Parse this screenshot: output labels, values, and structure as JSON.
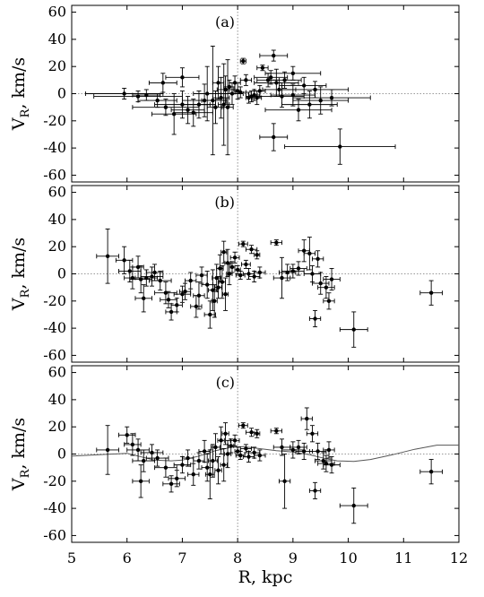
{
  "chart_data": [
    {
      "type": "scatter",
      "panel_label": "(a)",
      "ylabel_main": "V",
      "ylabel_sub": "R",
      "ylabel_rest": ", km/s",
      "xlim": [
        5,
        12
      ],
      "ylim": [
        -65,
        65
      ],
      "yticks": [
        "60",
        "40",
        "20",
        "0",
        "-20",
        "-40",
        "-60"
      ],
      "grid": false,
      "reference_lines": {
        "x": 8,
        "y": 0
      },
      "points": [
        {
          "x": 5.95,
          "y": 0,
          "xerr": 0.7,
          "yerr": 4
        },
        {
          "x": 6.2,
          "y": -2,
          "xerr": 0.8,
          "yerr": 4
        },
        {
          "x": 6.35,
          "y": -1,
          "xerr": 0.25,
          "yerr": 4
        },
        {
          "x": 6.55,
          "y": -5,
          "xerr": 0.35,
          "yerr": 5
        },
        {
          "x": 6.65,
          "y": 8,
          "xerr": 0.25,
          "yerr": 7
        },
        {
          "x": 6.7,
          "y": -10,
          "xerr": 0.6,
          "yerr": 6
        },
        {
          "x": 6.85,
          "y": -15,
          "xerr": 0.4,
          "yerr": 15
        },
        {
          "x": 7.0,
          "y": 12,
          "xerr": 0.3,
          "yerr": 7
        },
        {
          "x": 7.0,
          "y": -8,
          "xerr": 0.5,
          "yerr": 10
        },
        {
          "x": 7.1,
          "y": -12,
          "xerr": 0.3,
          "yerr": 10
        },
        {
          "x": 7.2,
          "y": -14,
          "xerr": 0.35,
          "yerr": 10
        },
        {
          "x": 7.3,
          "y": -8,
          "xerr": 0.3,
          "yerr": 10
        },
        {
          "x": 7.4,
          "y": -5,
          "xerr": 0.4,
          "yerr": 12
        },
        {
          "x": 7.45,
          "y": 0,
          "xerr": 0.25,
          "yerr": 20
        },
        {
          "x": 7.55,
          "y": -5,
          "xerr": 0.2,
          "yerr": 40
        },
        {
          "x": 7.6,
          "y": -10,
          "xerr": 0.15,
          "yerr": 12
        },
        {
          "x": 7.65,
          "y": 8,
          "xerr": 0.1,
          "yerr": 12
        },
        {
          "x": 7.7,
          "y": -3,
          "xerr": 0.15,
          "yerr": 15
        },
        {
          "x": 7.75,
          "y": -8,
          "xerr": 0.1,
          "yerr": 30
        },
        {
          "x": 7.78,
          "y": 3,
          "xerr": 0.15,
          "yerr": 10
        },
        {
          "x": 7.82,
          "y": -10,
          "xerr": 0.1,
          "yerr": 35
        },
        {
          "x": 7.85,
          "y": 5,
          "xerr": 0.1,
          "yerr": 5
        },
        {
          "x": 7.9,
          "y": 0,
          "xerr": 0.2,
          "yerr": 8
        },
        {
          "x": 7.95,
          "y": 8,
          "xerr": 0.1,
          "yerr": 5
        },
        {
          "x": 8.0,
          "y": 2,
          "xerr": 0.05,
          "yerr": 6
        },
        {
          "x": 8.05,
          "y": 1,
          "xerr": 0.1,
          "yerr": 4
        },
        {
          "x": 8.1,
          "y": 24,
          "xerr": 0.05,
          "yerr": 2
        },
        {
          "x": 8.15,
          "y": 10,
          "xerr": 0.1,
          "yerr": 4
        },
        {
          "x": 8.2,
          "y": -3,
          "xerr": 0.05,
          "yerr": 4
        },
        {
          "x": 8.25,
          "y": -2,
          "xerr": 0.1,
          "yerr": 4
        },
        {
          "x": 8.3,
          "y": -1,
          "xerr": 0.1,
          "yerr": 4
        },
        {
          "x": 8.35,
          "y": -3,
          "xerr": 0.08,
          "yerr": 5
        },
        {
          "x": 8.4,
          "y": 2,
          "xerr": 0.1,
          "yerr": 4
        },
        {
          "x": 8.45,
          "y": 19,
          "xerr": 0.1,
          "yerr": 2
        },
        {
          "x": 8.55,
          "y": 10,
          "xerr": 0.2,
          "yerr": 5
        },
        {
          "x": 8.6,
          "y": 12,
          "xerr": 0.3,
          "yerr": 5
        },
        {
          "x": 8.65,
          "y": 28,
          "xerr": 0.25,
          "yerr": 4
        },
        {
          "x": 8.65,
          "y": -32,
          "xerr": 0.25,
          "yerr": 10
        },
        {
          "x": 8.7,
          "y": 8,
          "xerr": 0.4,
          "yerr": 10
        },
        {
          "x": 8.75,
          "y": 3,
          "xerr": 0.3,
          "yerr": 5
        },
        {
          "x": 8.8,
          "y": -2,
          "xerr": 0.4,
          "yerr": 8
        },
        {
          "x": 8.85,
          "y": 10,
          "xerr": 0.3,
          "yerr": 6
        },
        {
          "x": 9.0,
          "y": -1,
          "xerr": 0.4,
          "yerr": 8
        },
        {
          "x": 9.0,
          "y": 15,
          "xerr": 0.5,
          "yerr": 5
        },
        {
          "x": 9.1,
          "y": -12,
          "xerr": 0.6,
          "yerr": 8
        },
        {
          "x": 9.2,
          "y": 6,
          "xerr": 0.4,
          "yerr": 6
        },
        {
          "x": 9.3,
          "y": -8,
          "xerr": 0.5,
          "yerr": 10
        },
        {
          "x": 9.4,
          "y": 3,
          "xerr": 0.6,
          "yerr": 6
        },
        {
          "x": 9.5,
          "y": -5,
          "xerr": 0.5,
          "yerr": 10
        },
        {
          "x": 9.7,
          "y": -3,
          "xerr": 0.7,
          "yerr": 6
        },
        {
          "x": 9.85,
          "y": -39,
          "xerr": 1.0,
          "yerr": 13
        }
      ]
    },
    {
      "type": "scatter",
      "panel_label": "(b)",
      "ylabel_main": "V",
      "ylabel_sub": "R",
      "ylabel_rest": ", km/s",
      "xlim": [
        5,
        12
      ],
      "ylim": [
        -65,
        65
      ],
      "yticks": [
        "60",
        "40",
        "20",
        "0",
        "-20",
        "-40",
        "-60"
      ],
      "grid": false,
      "reference_lines": {
        "x": 8,
        "y": 0
      },
      "points": [
        {
          "x": 5.65,
          "y": 13,
          "xerr": 0.2,
          "yerr": 20
        },
        {
          "x": 5.95,
          "y": 10,
          "xerr": 0.15,
          "yerr": 10
        },
        {
          "x": 6.05,
          "y": 2,
          "xerr": 0.2,
          "yerr": 8
        },
        {
          "x": 6.1,
          "y": -3,
          "xerr": 0.15,
          "yerr": 8
        },
        {
          "x": 6.2,
          "y": 5,
          "xerr": 0.1,
          "yerr": 8
        },
        {
          "x": 6.25,
          "y": -4,
          "xerr": 0.2,
          "yerr": 10
        },
        {
          "x": 6.3,
          "y": -18,
          "xerr": 0.15,
          "yerr": 10
        },
        {
          "x": 6.35,
          "y": -3,
          "xerr": 0.2,
          "yerr": 6
        },
        {
          "x": 6.45,
          "y": -2,
          "xerr": 0.2,
          "yerr": 7
        },
        {
          "x": 6.5,
          "y": 1,
          "xerr": 0.15,
          "yerr": 6
        },
        {
          "x": 6.6,
          "y": -5,
          "xerr": 0.2,
          "yerr": 7
        },
        {
          "x": 6.7,
          "y": -14,
          "xerr": 0.2,
          "yerr": 8
        },
        {
          "x": 6.75,
          "y": -19,
          "xerr": 0.15,
          "yerr": 6
        },
        {
          "x": 6.8,
          "y": -28,
          "xerr": 0.1,
          "yerr": 6
        },
        {
          "x": 6.9,
          "y": -23,
          "xerr": 0.1,
          "yerr": 5
        },
        {
          "x": 7.0,
          "y": -15,
          "xerr": 0.15,
          "yerr": 6
        },
        {
          "x": 7.05,
          "y": -13,
          "xerr": 0.1,
          "yerr": 6
        },
        {
          "x": 7.15,
          "y": -5,
          "xerr": 0.1,
          "yerr": 6
        },
        {
          "x": 7.25,
          "y": -24,
          "xerr": 0.1,
          "yerr": 8
        },
        {
          "x": 7.3,
          "y": -16,
          "xerr": 0.1,
          "yerr": 10
        },
        {
          "x": 7.35,
          "y": -1,
          "xerr": 0.1,
          "yerr": 6
        },
        {
          "x": 7.45,
          "y": -8,
          "xerr": 0.1,
          "yerr": 10
        },
        {
          "x": 7.5,
          "y": -30,
          "xerr": 0.1,
          "yerr": 10
        },
        {
          "x": 7.55,
          "y": -12,
          "xerr": 0.08,
          "yerr": 15
        },
        {
          "x": 7.58,
          "y": -20,
          "xerr": 0.05,
          "yerr": 12
        },
        {
          "x": 7.62,
          "y": -3,
          "xerr": 0.08,
          "yerr": 10
        },
        {
          "x": 7.65,
          "y": -10,
          "xerr": 0.06,
          "yerr": 8
        },
        {
          "x": 7.68,
          "y": 4,
          "xerr": 0.06,
          "yerr": 10
        },
        {
          "x": 7.72,
          "y": -6,
          "xerr": 0.06,
          "yerr": 12
        },
        {
          "x": 7.75,
          "y": 16,
          "xerr": 0.05,
          "yerr": 8
        },
        {
          "x": 7.78,
          "y": -15,
          "xerr": 0.05,
          "yerr": 12
        },
        {
          "x": 7.82,
          "y": 8,
          "xerr": 0.05,
          "yerr": 10
        },
        {
          "x": 7.85,
          "y": 0,
          "xerr": 0.05,
          "yerr": 8
        },
        {
          "x": 7.9,
          "y": 5,
          "xerr": 0.05,
          "yerr": 4
        },
        {
          "x": 7.95,
          "y": 12,
          "xerr": 0.08,
          "yerr": 4
        },
        {
          "x": 8.0,
          "y": 3,
          "xerr": 0.05,
          "yerr": 3
        },
        {
          "x": 8.05,
          "y": -1,
          "xerr": 0.08,
          "yerr": 3
        },
        {
          "x": 8.1,
          "y": 22,
          "xerr": 0.08,
          "yerr": 2
        },
        {
          "x": 8.15,
          "y": 7,
          "xerr": 0.08,
          "yerr": 3
        },
        {
          "x": 8.2,
          "y": 0,
          "xerr": 0.1,
          "yerr": 4
        },
        {
          "x": 8.25,
          "y": 18,
          "xerr": 0.1,
          "yerr": 3
        },
        {
          "x": 8.3,
          "y": -2,
          "xerr": 0.1,
          "yerr": 4
        },
        {
          "x": 8.35,
          "y": 14,
          "xerr": 0.05,
          "yerr": 3
        },
        {
          "x": 8.4,
          "y": 1,
          "xerr": 0.1,
          "yerr": 4
        },
        {
          "x": 8.7,
          "y": 23,
          "xerr": 0.1,
          "yerr": 2
        },
        {
          "x": 8.8,
          "y": -3,
          "xerr": 0.15,
          "yerr": 15
        },
        {
          "x": 8.9,
          "y": 1,
          "xerr": 0.15,
          "yerr": 6
        },
        {
          "x": 9.0,
          "y": 2,
          "xerr": 0.2,
          "yerr": 5
        },
        {
          "x": 9.1,
          "y": 4,
          "xerr": 0.15,
          "yerr": 5
        },
        {
          "x": 9.2,
          "y": 17,
          "xerr": 0.1,
          "yerr": 8
        },
        {
          "x": 9.3,
          "y": 15,
          "xerr": 0.1,
          "yerr": 12
        },
        {
          "x": 9.35,
          "y": 0,
          "xerr": 0.15,
          "yerr": 6
        },
        {
          "x": 9.4,
          "y": -33,
          "xerr": 0.1,
          "yerr": 6
        },
        {
          "x": 9.45,
          "y": 11,
          "xerr": 0.1,
          "yerr": 6
        },
        {
          "x": 9.5,
          "y": -7,
          "xerr": 0.15,
          "yerr": 8
        },
        {
          "x": 9.6,
          "y": -10,
          "xerr": 0.15,
          "yerr": 8
        },
        {
          "x": 9.65,
          "y": -20,
          "xerr": 0.1,
          "yerr": 6
        },
        {
          "x": 9.7,
          "y": -4,
          "xerr": 0.15,
          "yerr": 8
        },
        {
          "x": 10.1,
          "y": -41,
          "xerr": 0.25,
          "yerr": 13
        },
        {
          "x": 11.5,
          "y": -14,
          "xerr": 0.2,
          "yerr": 9
        }
      ]
    },
    {
      "type": "scatter",
      "panel_label": "(c)",
      "ylabel_main": "V",
      "ylabel_sub": "R",
      "ylabel_rest": ", km/s",
      "xlabel": "R,  kpc",
      "xlim": [
        5,
        12
      ],
      "xticks": [
        "5",
        "6",
        "7",
        "8",
        "9",
        "10",
        "11",
        "12"
      ],
      "ylim": [
        -65,
        65
      ],
      "yticks": [
        "60",
        "40",
        "20",
        "0",
        "-20",
        "-40",
        "-60"
      ],
      "grid": false,
      "reference_lines": {
        "x": 8,
        "y": 0
      },
      "curve": {
        "x": [
          5.0,
          5.5,
          6.0,
          6.3,
          6.5,
          6.8,
          7.0,
          7.3,
          7.6,
          7.9,
          8.1,
          8.3,
          8.5,
          8.7,
          9.0,
          9.3,
          9.6,
          9.8,
          10.1,
          10.4,
          10.8,
          11.2,
          11.6,
          12.0
        ],
        "y": [
          -1.5,
          -0.5,
          0.5,
          -2.5,
          -4.5,
          -5,
          -4.5,
          -1.5,
          2.5,
          5,
          5.5,
          4.5,
          3.5,
          2.5,
          1.5,
          -0.5,
          -3.5,
          -5,
          -5.5,
          -4,
          -0.5,
          3.5,
          6.5,
          6.5
        ]
      },
      "points": [
        {
          "x": 5.65,
          "y": 3,
          "xerr": 0.2,
          "yerr": 18
        },
        {
          "x": 6.0,
          "y": 14,
          "xerr": 0.15,
          "yerr": 6
        },
        {
          "x": 6.1,
          "y": 7,
          "xerr": 0.15,
          "yerr": 8
        },
        {
          "x": 6.2,
          "y": 3,
          "xerr": 0.2,
          "yerr": 8
        },
        {
          "x": 6.25,
          "y": -20,
          "xerr": 0.15,
          "yerr": 12
        },
        {
          "x": 6.3,
          "y": -5,
          "xerr": 0.2,
          "yerr": 8
        },
        {
          "x": 6.45,
          "y": 1,
          "xerr": 0.2,
          "yerr": 6
        },
        {
          "x": 6.55,
          "y": -3,
          "xerr": 0.2,
          "yerr": 6
        },
        {
          "x": 6.7,
          "y": -10,
          "xerr": 0.2,
          "yerr": 7
        },
        {
          "x": 6.8,
          "y": -22,
          "xerr": 0.15,
          "yerr": 6
        },
        {
          "x": 6.9,
          "y": -18,
          "xerr": 0.15,
          "yerr": 6
        },
        {
          "x": 7.0,
          "y": -8,
          "xerr": 0.15,
          "yerr": 6
        },
        {
          "x": 7.1,
          "y": -3,
          "xerr": 0.1,
          "yerr": 6
        },
        {
          "x": 7.2,
          "y": -15,
          "xerr": 0.1,
          "yerr": 8
        },
        {
          "x": 7.3,
          "y": -5,
          "xerr": 0.1,
          "yerr": 6
        },
        {
          "x": 7.4,
          "y": 2,
          "xerr": 0.1,
          "yerr": 8
        },
        {
          "x": 7.45,
          "y": -10,
          "xerr": 0.1,
          "yerr": 10
        },
        {
          "x": 7.5,
          "y": -15,
          "xerr": 0.08,
          "yerr": 18
        },
        {
          "x": 7.55,
          "y": -5,
          "xerr": 0.08,
          "yerr": 12
        },
        {
          "x": 7.6,
          "y": 5,
          "xerr": 0.08,
          "yerr": 10
        },
        {
          "x": 7.65,
          "y": -12,
          "xerr": 0.06,
          "yerr": 10
        },
        {
          "x": 7.7,
          "y": 10,
          "xerr": 0.06,
          "yerr": 10
        },
        {
          "x": 7.75,
          "y": -8,
          "xerr": 0.06,
          "yerr": 12
        },
        {
          "x": 7.78,
          "y": 15,
          "xerr": 0.06,
          "yerr": 8
        },
        {
          "x": 7.82,
          "y": 0,
          "xerr": 0.06,
          "yerr": 10
        },
        {
          "x": 7.88,
          "y": 6,
          "xerr": 0.05,
          "yerr": 5
        },
        {
          "x": 7.95,
          "y": 10,
          "xerr": 0.08,
          "yerr": 4
        },
        {
          "x": 8.0,
          "y": 2,
          "xerr": 0.05,
          "yerr": 3
        },
        {
          "x": 8.05,
          "y": -1,
          "xerr": 0.08,
          "yerr": 3
        },
        {
          "x": 8.1,
          "y": 21,
          "xerr": 0.08,
          "yerr": 2
        },
        {
          "x": 8.15,
          "y": 4,
          "xerr": 0.1,
          "yerr": 3
        },
        {
          "x": 8.2,
          "y": -2,
          "xerr": 0.1,
          "yerr": 4
        },
        {
          "x": 8.25,
          "y": 16,
          "xerr": 0.1,
          "yerr": 3
        },
        {
          "x": 8.3,
          "y": 1,
          "xerr": 0.1,
          "yerr": 4
        },
        {
          "x": 8.35,
          "y": 15,
          "xerr": 0.05,
          "yerr": 3
        },
        {
          "x": 8.4,
          "y": -1,
          "xerr": 0.1,
          "yerr": 4
        },
        {
          "x": 8.7,
          "y": 17,
          "xerr": 0.1,
          "yerr": 2
        },
        {
          "x": 8.8,
          "y": 5,
          "xerr": 0.15,
          "yerr": 6
        },
        {
          "x": 8.85,
          "y": -20,
          "xerr": 0.1,
          "yerr": 20
        },
        {
          "x": 9.0,
          "y": 3,
          "xerr": 0.2,
          "yerr": 6
        },
        {
          "x": 9.1,
          "y": 5,
          "xerr": 0.15,
          "yerr": 5
        },
        {
          "x": 9.2,
          "y": 2,
          "xerr": 0.15,
          "yerr": 6
        },
        {
          "x": 9.25,
          "y": 26,
          "xerr": 0.1,
          "yerr": 8
        },
        {
          "x": 9.35,
          "y": 15,
          "xerr": 0.1,
          "yerr": 6
        },
        {
          "x": 9.4,
          "y": -27,
          "xerr": 0.1,
          "yerr": 6
        },
        {
          "x": 9.45,
          "y": 2,
          "xerr": 0.15,
          "yerr": 6
        },
        {
          "x": 9.55,
          "y": -5,
          "xerr": 0.15,
          "yerr": 6
        },
        {
          "x": 9.6,
          "y": -7,
          "xerr": 0.15,
          "yerr": 6
        },
        {
          "x": 9.65,
          "y": 3,
          "xerr": 0.1,
          "yerr": 6
        },
        {
          "x": 9.7,
          "y": -8,
          "xerr": 0.15,
          "yerr": 6
        },
        {
          "x": 10.1,
          "y": -38,
          "xerr": 0.25,
          "yerr": 13
        },
        {
          "x": 11.5,
          "y": -13,
          "xerr": 0.2,
          "yerr": 9
        }
      ]
    }
  ]
}
